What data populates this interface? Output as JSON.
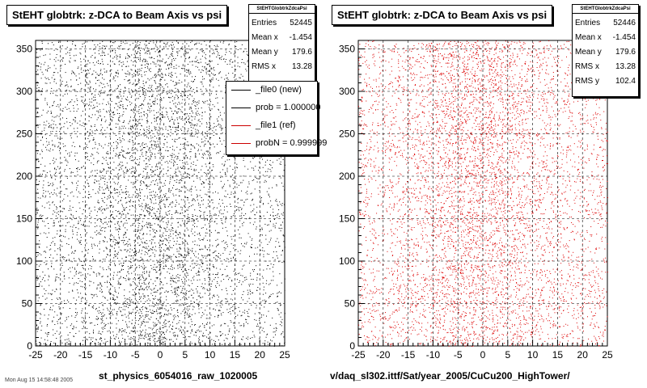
{
  "chart_data": [
    {
      "type": "scatter",
      "title": "StEHT globtrk: z-DCA to Beam Axis vs psi",
      "stats_name": "StEHTGlobtrkZdcaPsi",
      "xlim": [
        -25,
        25
      ],
      "ylim": [
        0,
        360
      ],
      "xticks": [
        "-25",
        "-20",
        "-15",
        "-10",
        "-5",
        "0",
        "5",
        "10",
        "15",
        "20",
        "25"
      ],
      "yticks": [
        "0",
        "50",
        "100",
        "150",
        "200",
        "250",
        "300",
        "350"
      ],
      "color": "#000000",
      "grid": true,
      "stats": [
        {
          "label": "Entries",
          "value": "52445"
        },
        {
          "label": "Mean x",
          "value": "-1.454"
        },
        {
          "label": "Mean y",
          "value": "179.6"
        },
        {
          "label": "RMS x",
          "value": "13.28"
        }
      ],
      "legend": [
        {
          "label": "_file0 (new)",
          "color": "#000000"
        },
        {
          "label": "prob = 1.000000",
          "color": "#000000"
        },
        {
          "label": "_file1 (ref)",
          "color": "#cc0000"
        },
        {
          "label": "probN = 0.999999",
          "color": "#cc0000"
        }
      ],
      "caption": "st_physics_6054016_raw_1020005"
    },
    {
      "type": "scatter",
      "title": "StEHT globtrk: z-DCA to Beam Axis vs psi",
      "stats_name": "StEHTGlobtrkZdcaPsi",
      "xlim": [
        -25,
        25
      ],
      "ylim": [
        0,
        360
      ],
      "xticks": [
        "-25",
        "-20",
        "-15",
        "-10",
        "-5",
        "0",
        "5",
        "10",
        "15",
        "20",
        "25"
      ],
      "yticks": [
        "0",
        "50",
        "100",
        "150",
        "200",
        "250",
        "300",
        "350"
      ],
      "color": "#dd0000",
      "grid": true,
      "stats": [
        {
          "label": "Entries",
          "value": "52446"
        },
        {
          "label": "Mean x",
          "value": "-1.454"
        },
        {
          "label": "Mean y",
          "value": "179.6"
        },
        {
          "label": "RMS x",
          "value": "13.28"
        },
        {
          "label": "RMS y",
          "value": "102.4"
        }
      ],
      "caption": "v/daq_sl302.ittf/Sat/year_2005/CuCu200_HighTower/"
    }
  ],
  "timestamp": "Mon Aug 15 14:58:48 2005"
}
